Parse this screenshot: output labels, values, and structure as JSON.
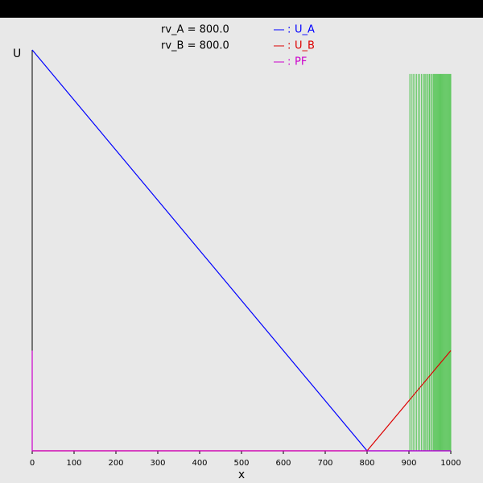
{
  "chart_data": {
    "type": "line",
    "annotations": [
      "rv_A = 800.0",
      "rv_B = 800.0"
    ],
    "xlabel": "x",
    "ylabel": "U",
    "xlim": [
      0,
      1000
    ],
    "ylim": [
      0,
      800
    ],
    "xticks": [
      0,
      100,
      200,
      300,
      400,
      500,
      600,
      700,
      800,
      900,
      1000
    ],
    "legend_separator": ":",
    "series": [
      {
        "name": "U_A",
        "color": "#0000ff",
        "x": [
          0,
          800,
          1000
        ],
        "values": [
          800,
          0,
          0
        ]
      },
      {
        "name": "U_B",
        "color": "#dd0000",
        "x": [
          0,
          800,
          1000
        ],
        "values": [
          0,
          0,
          200
        ]
      },
      {
        "name": "PF",
        "color": "#cc00cc",
        "x": [
          0,
          0,
          1000
        ],
        "values": [
          200,
          0,
          0
        ]
      }
    ],
    "vlines": {
      "color": "#00b000",
      "height": 752,
      "x": [
        902,
        906,
        910,
        914,
        918,
        922,
        926,
        930,
        934,
        937,
        940,
        943,
        946,
        949,
        952,
        955,
        958,
        960,
        962,
        964,
        966,
        968,
        970,
        972,
        974,
        976,
        978,
        980,
        982,
        984,
        986,
        988,
        990,
        992,
        994,
        996,
        998,
        1000
      ]
    }
  }
}
